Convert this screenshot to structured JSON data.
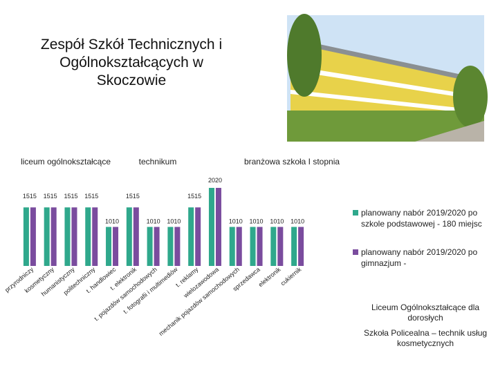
{
  "title": "Zespół Szkół Technicznych i Ogólnokształcących w Skoczowie",
  "chart_data": {
    "type": "bar",
    "groups": [
      "liceum ogólnokształcące",
      "technikum",
      "branżowa szkoła I stopnia"
    ],
    "categories": [
      "przyrodniczy",
      "kosmetyczny",
      "humanistyczny",
      "politechniczny",
      "t. handlowiec",
      "t. elektronik",
      "t. pojazdów samochodowych",
      "t. fotografii i multimediów",
      "t. reklamy",
      "wielozawodowa",
      "mechanik pojazdów samochodowych",
      "sprzedawca",
      "elektronik",
      "cukiernik"
    ],
    "series": [
      {
        "name": "planowany nabór 2019/2020 po szkole podstawowej - 180 miejsc",
        "color": "#2fa88c",
        "values": [
          15,
          15,
          15,
          15,
          10,
          15,
          10,
          10,
          15,
          20,
          10,
          10,
          10,
          10
        ]
      },
      {
        "name": "planowany nabór 2019/2020 po gimnazjum -",
        "color": "#7a4c9e",
        "values": [
          15,
          15,
          15,
          15,
          10,
          15,
          10,
          10,
          15,
          20,
          10,
          10,
          10,
          10
        ]
      }
    ]
  },
  "notes": [
    "Liceum Ogólnokształcące dla dorosłych",
    "Szkoła Policealna – technik usług kosmetycznych"
  ]
}
